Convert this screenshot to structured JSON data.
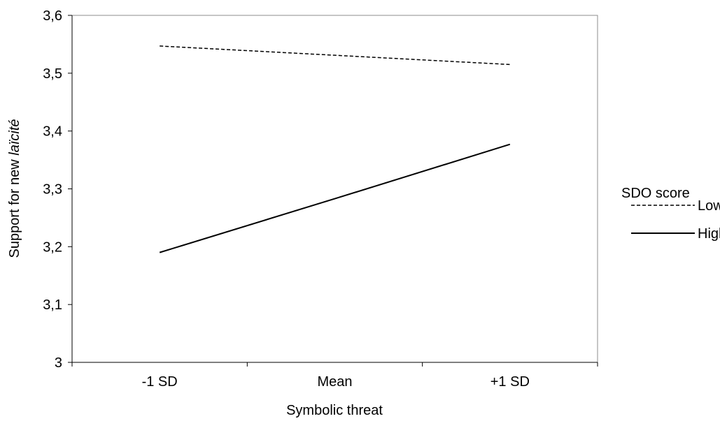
{
  "chart_data": {
    "type": "line",
    "categories": [
      "-1 SD",
      "Mean",
      "+1 SD"
    ],
    "xlabel": "Symbolic threat",
    "ylabel_prefix": "Support for new ",
    "ylabel_italic": "laïcité",
    "ylim": [
      3,
      3.6
    ],
    "yticks": [
      3,
      3.1,
      3.2,
      3.3,
      3.4,
      3.5,
      3.6
    ],
    "ytick_labels": [
      "3",
      "3,1",
      "3,2",
      "3,3",
      "3,4",
      "3,5",
      "3,6"
    ],
    "grid": false,
    "legend": {
      "title": "SDO score",
      "position": "right"
    },
    "series": [
      {
        "name": "Low",
        "style": "dashed",
        "color": "#000000",
        "values": [
          3.547,
          3.531,
          3.515
        ]
      },
      {
        "name": "High",
        "style": "solid",
        "color": "#000000",
        "values": [
          3.19,
          3.283,
          3.377
        ]
      }
    ]
  }
}
